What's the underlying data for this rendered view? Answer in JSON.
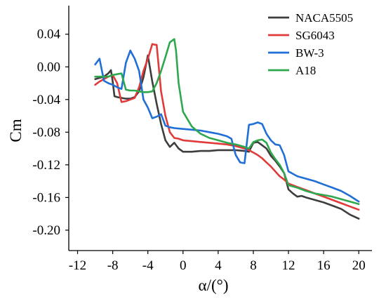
{
  "chart_data": {
    "type": "line",
    "xlabel": "α/(°)",
    "ylabel": "Cm",
    "xlim": [
      -13,
      21.5
    ],
    "ylim": [
      -0.225,
      0.075
    ],
    "xticks": [
      "-12",
      "-8",
      "-4",
      "0",
      "4",
      "8",
      "12",
      "16",
      "20"
    ],
    "xtick_values": [
      -12,
      -8,
      -4,
      0,
      4,
      8,
      12,
      16,
      20
    ],
    "yticks": [
      "0.04",
      "0.00",
      "-0.04",
      "-0.08",
      "-0.12",
      "-0.16",
      "-0.20"
    ],
    "ytick_values": [
      0.04,
      0.0,
      -0.04,
      -0.08,
      -0.12,
      -0.16,
      -0.2
    ],
    "grid": false,
    "legend_position": "top-right",
    "series": [
      {
        "name": "NACA5505",
        "color": "#3d3d3d",
        "x": [
          -10,
          -9,
          -8.5,
          -8.2,
          -8,
          -7.8,
          -7.5,
          -7,
          -6.5,
          -6,
          -5.5,
          -5,
          -4.5,
          -4,
          -3.5,
          -3,
          -2.5,
          -2,
          -1.5,
          -1,
          -0.5,
          0,
          1,
          2,
          3,
          4,
          5,
          6,
          7,
          7.5,
          8,
          8.5,
          9,
          9.5,
          10,
          10.5,
          11,
          11.5,
          12,
          12.5,
          13,
          13.5,
          14,
          15,
          16,
          17,
          18,
          19,
          20
        ],
        "y": [
          -0.015,
          -0.012,
          -0.008,
          -0.004,
          -0.018,
          -0.036,
          -0.037,
          -0.038,
          -0.039,
          -0.039,
          -0.037,
          -0.03,
          -0.013,
          0.014,
          -0.018,
          -0.045,
          -0.07,
          -0.09,
          -0.098,
          -0.093,
          -0.1,
          -0.104,
          -0.104,
          -0.103,
          -0.103,
          -0.102,
          -0.102,
          -0.102,
          -0.103,
          -0.104,
          -0.093,
          -0.092,
          -0.096,
          -0.1,
          -0.109,
          -0.115,
          -0.122,
          -0.13,
          -0.15,
          -0.155,
          -0.159,
          -0.158,
          -0.16,
          -0.163,
          -0.166,
          -0.17,
          -0.174,
          -0.181,
          -0.186
        ]
      },
      {
        "name": "SG6043",
        "color": "#e03a3a",
        "x": [
          -10,
          -9.5,
          -9,
          -8.5,
          -8,
          -7.5,
          -7,
          -6.5,
          -6,
          -5.5,
          -5,
          -4.5,
          -4,
          -3.5,
          -3.2,
          -3,
          -2.5,
          -2,
          -1.5,
          -1,
          -0.5,
          0,
          1,
          2,
          3,
          4,
          5,
          6,
          7,
          7.5,
          8,
          8.5,
          9,
          9.5,
          10,
          10.5,
          11,
          11.5,
          12,
          13,
          14,
          15,
          16,
          17,
          18,
          19,
          20
        ],
        "y": [
          -0.022,
          -0.018,
          -0.015,
          -0.012,
          -0.01,
          -0.02,
          -0.043,
          -0.042,
          -0.04,
          -0.038,
          -0.025,
          -0.005,
          0.01,
          0.028,
          0.027,
          0.027,
          -0.03,
          -0.06,
          -0.08,
          -0.087,
          -0.088,
          -0.09,
          -0.091,
          -0.092,
          -0.093,
          -0.094,
          -0.095,
          -0.097,
          -0.1,
          -0.102,
          -0.105,
          -0.108,
          -0.112,
          -0.117,
          -0.122,
          -0.128,
          -0.134,
          -0.138,
          -0.143,
          -0.147,
          -0.151,
          -0.155,
          -0.159,
          -0.163,
          -0.167,
          -0.171,
          -0.175
        ]
      },
      {
        "name": "BW-3",
        "color": "#1f6fd6",
        "x": [
          -10,
          -9.5,
          -9,
          -8.5,
          -8,
          -7.5,
          -7,
          -6.5,
          -6,
          -5.5,
          -5,
          -4.5,
          -4,
          -3.5,
          -3,
          -2.5,
          -2,
          -1.5,
          -1,
          0,
          1,
          2,
          3,
          4,
          5,
          5.5,
          6,
          6.5,
          7,
          7.5,
          8,
          8.5,
          9,
          9.5,
          10,
          10.5,
          11,
          11.5,
          12,
          12.5,
          13,
          14,
          15,
          16,
          17,
          18,
          19,
          20
        ],
        "y": [
          0.003,
          0.01,
          -0.017,
          -0.02,
          -0.022,
          -0.025,
          -0.027,
          0.005,
          0.02,
          0.01,
          -0.005,
          -0.04,
          -0.05,
          -0.063,
          -0.061,
          -0.058,
          -0.072,
          -0.074,
          -0.075,
          -0.076,
          -0.077,
          -0.078,
          -0.08,
          -0.082,
          -0.085,
          -0.088,
          -0.108,
          -0.117,
          -0.118,
          -0.071,
          -0.07,
          -0.068,
          -0.07,
          -0.082,
          -0.09,
          -0.095,
          -0.096,
          -0.108,
          -0.128,
          -0.131,
          -0.134,
          -0.137,
          -0.14,
          -0.144,
          -0.148,
          -0.152,
          -0.158,
          -0.165
        ]
      },
      {
        "name": "A18",
        "color": "#2ea84e",
        "x": [
          -10,
          -9.5,
          -9,
          -8.5,
          -8,
          -7.5,
          -7,
          -6.5,
          -6,
          -5.5,
          -5,
          -4.5,
          -4,
          -3.5,
          -3,
          -2.5,
          -2,
          -1.5,
          -1,
          -0.8,
          -0.5,
          0,
          1,
          2,
          3,
          4,
          5,
          6,
          7,
          7.5,
          8,
          8.5,
          9,
          9.5,
          10,
          10.5,
          11,
          11.5,
          12,
          13,
          14,
          15,
          16,
          17,
          18,
          19,
          20
        ],
        "y": [
          -0.012,
          -0.012,
          -0.012,
          -0.012,
          -0.01,
          -0.009,
          -0.008,
          -0.028,
          -0.029,
          -0.029,
          -0.03,
          -0.031,
          -0.031,
          -0.03,
          -0.02,
          -0.005,
          0.012,
          0.03,
          0.034,
          0.02,
          -0.02,
          -0.055,
          -0.073,
          -0.082,
          -0.087,
          -0.09,
          -0.093,
          -0.095,
          -0.098,
          -0.1,
          -0.092,
          -0.09,
          -0.089,
          -0.093,
          -0.105,
          -0.113,
          -0.12,
          -0.13,
          -0.145,
          -0.148,
          -0.152,
          -0.155,
          -0.157,
          -0.159,
          -0.162,
          -0.165,
          -0.168
        ]
      }
    ]
  }
}
